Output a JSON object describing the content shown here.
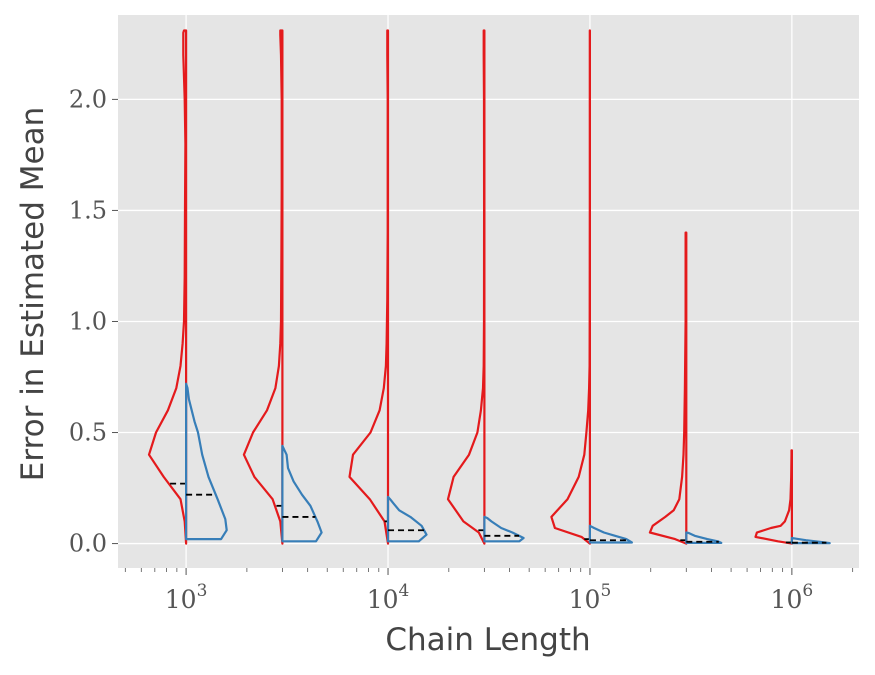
{
  "chart_data": {
    "type": "violin",
    "xlabel": "Chain Length",
    "ylabel": "Error in Estimated Mean",
    "x_scale": "log",
    "ylim": [
      -0.11,
      2.38
    ],
    "y_ticks": [
      0.0,
      0.5,
      1.0,
      1.5,
      2.0
    ],
    "y_tick_labels": [
      "0.0",
      "0.5",
      "1.0",
      "1.5",
      "2.0"
    ],
    "x_ticks": [
      1000,
      10000,
      100000,
      1000000
    ],
    "x_tick_labels": [
      {
        "base": "10",
        "exp": "3"
      },
      {
        "base": "10",
        "exp": "4"
      },
      {
        "base": "10",
        "exp": "5"
      },
      {
        "base": "10",
        "exp": "6"
      }
    ],
    "grid": true,
    "background": "#e5e5e5",
    "series": [
      {
        "side": "left",
        "color": "#e41a1c",
        "chain_lengths": [
          1000,
          3000,
          10000,
          30000,
          100000,
          300000,
          1000000
        ],
        "max": [
          2.31,
          2.31,
          2.31,
          2.31,
          2.31,
          1.4,
          0.42
        ],
        "median": [
          0.27,
          0.17,
          0.1,
          0.06,
          0.02,
          0.015,
          0.005
        ],
        "profiles": [
          [
            [
              0,
              0.0
            ],
            [
              0.02,
              0.1
            ],
            [
              0.08,
              0.2
            ],
            [
              0.32,
              0.3
            ],
            [
              0.53,
              0.4
            ],
            [
              0.43,
              0.5
            ],
            [
              0.26,
              0.6
            ],
            [
              0.14,
              0.7
            ],
            [
              0.08,
              0.8
            ],
            [
              0.05,
              0.9
            ],
            [
              0.03,
              1.0
            ],
            [
              0.02,
              1.2
            ],
            [
              0.015,
              1.5
            ],
            [
              0.01,
              1.8
            ],
            [
              0.02,
              2.0
            ],
            [
              0.04,
              2.2
            ],
            [
              0.04,
              2.3
            ],
            [
              0.03,
              2.31
            ]
          ],
          [
            [
              0,
              0.0
            ],
            [
              0.03,
              0.1
            ],
            [
              0.14,
              0.2
            ],
            [
              0.4,
              0.3
            ],
            [
              0.55,
              0.4
            ],
            [
              0.42,
              0.5
            ],
            [
              0.22,
              0.6
            ],
            [
              0.1,
              0.7
            ],
            [
              0.05,
              0.8
            ],
            [
              0.03,
              0.9
            ],
            [
              0.02,
              1.0
            ],
            [
              0.015,
              1.3
            ],
            [
              0.01,
              1.6
            ],
            [
              0.01,
              2.0
            ],
            [
              0.02,
              2.2
            ],
            [
              0.03,
              2.29
            ],
            [
              0.03,
              2.31
            ]
          ],
          [
            [
              0,
              0.0
            ],
            [
              0.05,
              0.1
            ],
            [
              0.26,
              0.2
            ],
            [
              0.55,
              0.3
            ],
            [
              0.5,
              0.4
            ],
            [
              0.25,
              0.5
            ],
            [
              0.12,
              0.6
            ],
            [
              0.06,
              0.7
            ],
            [
              0.03,
              0.8
            ],
            [
              0.02,
              0.9
            ],
            [
              0.01,
              1.1
            ],
            [
              0.005,
              1.4
            ],
            [
              0.005,
              2.0
            ],
            [
              0.01,
              2.2
            ],
            [
              0.01,
              2.31
            ]
          ],
          [
            [
              0,
              0.0
            ],
            [
              0.08,
              0.05
            ],
            [
              0.3,
              0.1
            ],
            [
              0.52,
              0.2
            ],
            [
              0.44,
              0.3
            ],
            [
              0.22,
              0.4
            ],
            [
              0.1,
              0.5
            ],
            [
              0.05,
              0.6
            ],
            [
              0.02,
              0.7
            ],
            [
              0.01,
              0.8
            ],
            [
              0.005,
              1.0
            ],
            [
              0.004,
              1.5
            ],
            [
              0.005,
              2.0
            ],
            [
              0.01,
              2.2
            ],
            [
              0.01,
              2.31
            ]
          ],
          [
            [
              0,
              0.0
            ],
            [
              0.12,
              0.03
            ],
            [
              0.5,
              0.07
            ],
            [
              0.55,
              0.12
            ],
            [
              0.32,
              0.2
            ],
            [
              0.16,
              0.3
            ],
            [
              0.08,
              0.4
            ],
            [
              0.05,
              0.5
            ],
            [
              0.025,
              0.6
            ],
            [
              0.012,
              0.7
            ],
            [
              0.005,
              0.8
            ],
            [
              0.003,
              1.0
            ],
            [
              0.002,
              1.5
            ],
            [
              0.002,
              2.0
            ],
            [
              0.002,
              2.31
            ]
          ],
          [
            [
              0,
              0.0
            ],
            [
              0.16,
              0.02
            ],
            [
              0.52,
              0.05
            ],
            [
              0.48,
              0.08
            ],
            [
              0.3,
              0.12
            ],
            [
              0.18,
              0.15
            ],
            [
              0.1,
              0.2
            ],
            [
              0.06,
              0.3
            ],
            [
              0.04,
              0.4
            ],
            [
              0.03,
              0.5
            ],
            [
              0.02,
              0.7
            ],
            [
              0.01,
              1.0
            ],
            [
              0.01,
              1.3
            ],
            [
              0.01,
              1.4
            ]
          ],
          [
            [
              0,
              0.0
            ],
            [
              0.2,
              0.01
            ],
            [
              0.52,
              0.03
            ],
            [
              0.5,
              0.05
            ],
            [
              0.3,
              0.07
            ],
            [
              0.16,
              0.08
            ],
            [
              0.1,
              0.1
            ],
            [
              0.04,
              0.15
            ],
            [
              0.02,
              0.2
            ],
            [
              0.01,
              0.3
            ],
            [
              0.005,
              0.4
            ],
            [
              0.005,
              0.42
            ]
          ]
        ]
      },
      {
        "side": "right",
        "color": "#377eb8",
        "chain_lengths": [
          1000,
          3000,
          10000,
          30000,
          100000,
          300000,
          1000000
        ],
        "max": [
          0.72,
          0.44,
          0.21,
          0.12,
          0.08,
          0.05,
          0.025
        ],
        "median": [
          0.22,
          0.12,
          0.06,
          0.035,
          0.015,
          0.008,
          0.004
        ],
        "profiles": [
          [
            [
              0,
              0.02
            ],
            [
              0.5,
              0.02
            ],
            [
              0.58,
              0.06
            ],
            [
              0.56,
              0.11
            ],
            [
              0.45,
              0.2
            ],
            [
              0.32,
              0.3
            ],
            [
              0.23,
              0.4
            ],
            [
              0.17,
              0.5
            ],
            [
              0.12,
              0.55
            ],
            [
              0.08,
              0.6
            ],
            [
              0.04,
              0.65
            ],
            [
              0.02,
              0.7
            ],
            [
              0,
              0.72
            ]
          ],
          [
            [
              0,
              0.01
            ],
            [
              0.48,
              0.01
            ],
            [
              0.56,
              0.05
            ],
            [
              0.5,
              0.1
            ],
            [
              0.4,
              0.17
            ],
            [
              0.28,
              0.22
            ],
            [
              0.16,
              0.28
            ],
            [
              0.08,
              0.34
            ],
            [
              0.06,
              0.4
            ],
            [
              0.03,
              0.42
            ],
            [
              0,
              0.44
            ]
          ],
          [
            [
              0,
              0.01
            ],
            [
              0.44,
              0.01
            ],
            [
              0.55,
              0.04
            ],
            [
              0.48,
              0.08
            ],
            [
              0.32,
              0.12
            ],
            [
              0.16,
              0.15
            ],
            [
              0.08,
              0.18
            ],
            [
              0.03,
              0.2
            ],
            [
              0,
              0.21
            ]
          ],
          [
            [
              0,
              0.01
            ],
            [
              0.5,
              0.01
            ],
            [
              0.56,
              0.025
            ],
            [
              0.4,
              0.05
            ],
            [
              0.24,
              0.07
            ],
            [
              0.1,
              0.1
            ],
            [
              0.04,
              0.115
            ],
            [
              0,
              0.12
            ]
          ],
          [
            [
              0,
              0.005
            ],
            [
              0.6,
              0.005
            ],
            [
              0.52,
              0.02
            ],
            [
              0.36,
              0.035
            ],
            [
              0.2,
              0.05
            ],
            [
              0.06,
              0.07
            ],
            [
              0,
              0.08
            ]
          ],
          [
            [
              0,
              0.003
            ],
            [
              0.5,
              0.003
            ],
            [
              0.45,
              0.01
            ],
            [
              0.3,
              0.02
            ],
            [
              0.12,
              0.035
            ],
            [
              0.03,
              0.048
            ],
            [
              0,
              0.05
            ]
          ],
          [
            [
              0,
              0.002
            ],
            [
              0.54,
              0.002
            ],
            [
              0.4,
              0.008
            ],
            [
              0.2,
              0.015
            ],
            [
              0.06,
              0.022
            ],
            [
              0,
              0.025
            ]
          ]
        ]
      }
    ]
  }
}
